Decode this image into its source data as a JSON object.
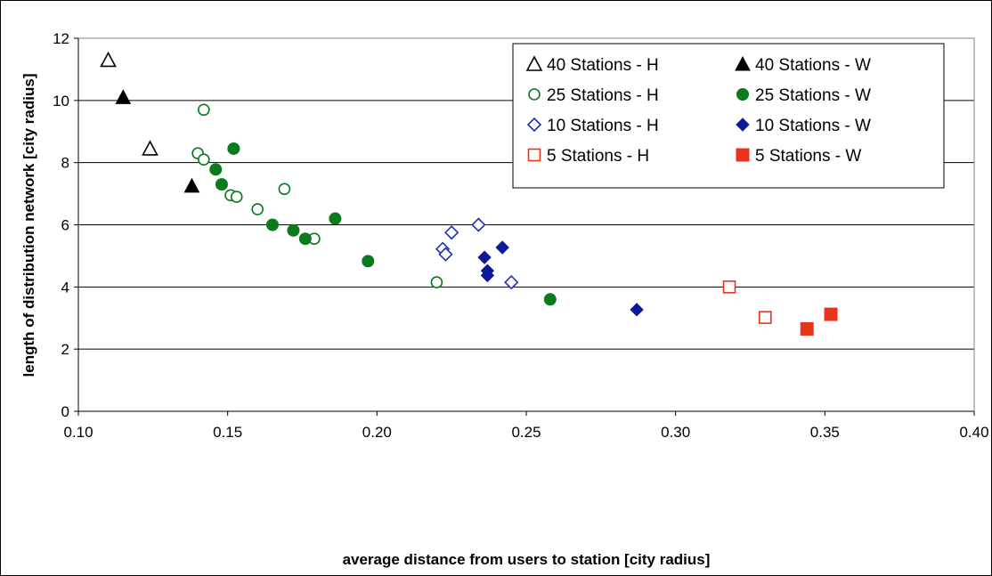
{
  "chart_data": {
    "type": "scatter",
    "xlabel": "average distance from users to station [city radius]",
    "ylabel": "length of distribution network [city radius]",
    "xlim": [
      0.1,
      0.4
    ],
    "ylim": [
      0,
      12
    ],
    "x_ticks": [
      0.1,
      0.15,
      0.2,
      0.25,
      0.3,
      0.35,
      0.4
    ],
    "x_tick_labels": [
      "0.10",
      "0.15",
      "0.20",
      "0.25",
      "0.30",
      "0.35",
      "0.40"
    ],
    "y_ticks": [
      0,
      2,
      4,
      6,
      8,
      10,
      12
    ],
    "y_tick_labels": [
      "0",
      "2",
      "4",
      "6",
      "8",
      "10",
      "12"
    ],
    "grid": "horizontal",
    "legend_position": "top-right",
    "series": [
      {
        "name": "40 Stations - H",
        "marker": "triangle",
        "filled": false,
        "color": "#000000",
        "x": [
          0.11,
          0.124
        ],
        "y": [
          11.3,
          8.45
        ]
      },
      {
        "name": "40 Stations - W",
        "marker": "triangle",
        "filled": true,
        "color": "#000000",
        "x": [
          0.115,
          0.138
        ],
        "y": [
          10.1,
          7.25
        ]
      },
      {
        "name": "25 Stations - H",
        "marker": "circle",
        "filled": false,
        "color": "#0a7a1e",
        "x": [
          0.142,
          0.14,
          0.142,
          0.169,
          0.151,
          0.153,
          0.16,
          0.179,
          0.22
        ],
        "y": [
          9.7,
          8.3,
          8.1,
          7.15,
          6.95,
          6.9,
          6.5,
          5.55,
          4.15
        ]
      },
      {
        "name": "25 Stations - W",
        "marker": "circle",
        "filled": true,
        "color": "#0a7a1e",
        "x": [
          0.152,
          0.146,
          0.148,
          0.165,
          0.172,
          0.176,
          0.186,
          0.197,
          0.258
        ],
        "y": [
          8.45,
          7.78,
          7.3,
          6.0,
          5.82,
          5.55,
          6.2,
          4.83,
          3.6
        ]
      },
      {
        "name": "10 Stations - H",
        "marker": "diamond",
        "filled": false,
        "color": "#1f2fb8",
        "x": [
          0.225,
          0.234,
          0.222,
          0.223,
          0.245
        ],
        "y": [
          5.75,
          6.0,
          5.22,
          5.05,
          4.15
        ]
      },
      {
        "name": "10 Stations - W",
        "marker": "diamond",
        "filled": true,
        "color": "#0c1a99",
        "x": [
          0.242,
          0.236,
          0.237,
          0.237,
          0.287
        ],
        "y": [
          5.27,
          4.95,
          4.52,
          4.37,
          3.27
        ]
      },
      {
        "name": "5 Stations - H",
        "marker": "square",
        "filled": false,
        "color": "#e8331d",
        "x": [
          0.318,
          0.33
        ],
        "y": [
          4.0,
          3.02
        ]
      },
      {
        "name": "5 Stations - W",
        "marker": "square",
        "filled": true,
        "color": "#e8331d",
        "x": [
          0.344,
          0.352
        ],
        "y": [
          2.65,
          3.12
        ]
      }
    ]
  }
}
